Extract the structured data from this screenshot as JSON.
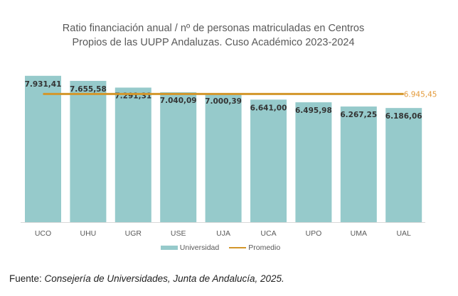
{
  "chart_data": {
    "type": "bar",
    "title_lines": [
      "Ratio financiación anual / nº de personas matriculadas en Centros",
      "Propios de las UUPP Andaluzas. Cuso Académico 2023-2024"
    ],
    "categories": [
      "UCO",
      "UHU",
      "UGR",
      "USE",
      "UJA",
      "UCA",
      "UPO",
      "UMA",
      "UAL"
    ],
    "series": [
      {
        "name": "Universidad",
        "type": "bar",
        "color": "#96CACB",
        "values": [
          7931.41,
          7655.58,
          7291.31,
          7040.09,
          7000.39,
          6641.0,
          6495.98,
          6267.25,
          6186.06
        ],
        "labels": [
          "7.931,41",
          "7.655,58",
          "7.291,31",
          "7.040,09",
          "7.000,39",
          "6.641,00",
          "6.495,98",
          "6.267,25",
          "6.186,06"
        ]
      },
      {
        "name": "Promedio",
        "type": "line",
        "color": "#D3962A",
        "value": 6945.45,
        "label": "6.945,45"
      }
    ],
    "xlabel": "",
    "ylabel": "",
    "ylim": [
      0,
      8000
    ],
    "grid": false,
    "legend": "bottom"
  },
  "source": {
    "prefix": "Fuente: ",
    "text": "Consejería de Universidades, Junta de Andalucía, 2025."
  }
}
